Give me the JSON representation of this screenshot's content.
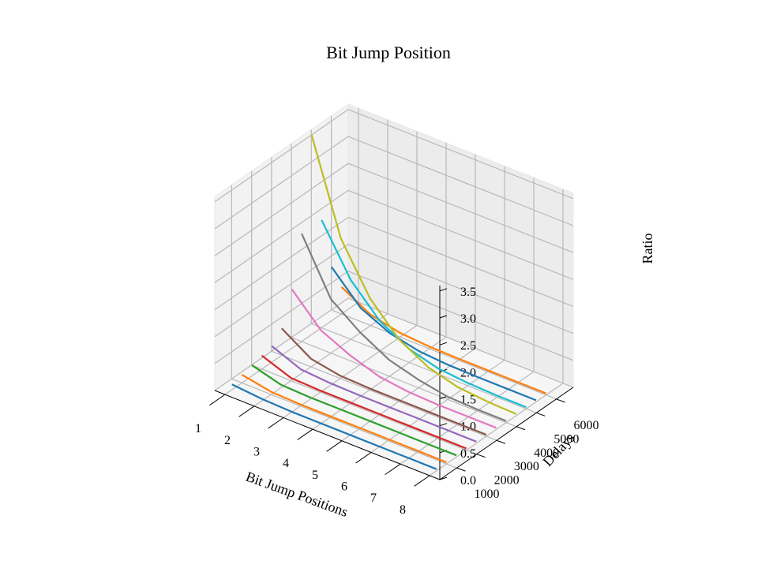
{
  "chart_data": {
    "type": "line3d",
    "title": "Bit Jump Position",
    "xlabel": "Bit Jump Positions",
    "ylabel": "Delays",
    "zlabel": "Ratio",
    "x": [
      1,
      2,
      3,
      4,
      5,
      6,
      7,
      8
    ],
    "x_ticks": [
      "1",
      "2",
      "3",
      "4",
      "5",
      "6",
      "7",
      "8"
    ],
    "y_ticks": [
      "1000",
      "2000",
      "3000",
      "4000",
      "5000",
      "6000"
    ],
    "z_ticks": [
      "0.0",
      "0.5",
      "1.0",
      "1.5",
      "2.0",
      "2.5",
      "3.0",
      "3.5"
    ],
    "xlim": [
      0.65,
      8.35
    ],
    "ylim": [
      150,
      6850
    ],
    "zlim": [
      0,
      3.6
    ],
    "grid": true,
    "series": [
      {
        "delay": 500,
        "color": "#1f77b4",
        "values": [
          0.1,
          0.05,
          0.03,
          0.03,
          0.03,
          0.03,
          0.03,
          0.03
        ]
      },
      {
        "delay": 1000,
        "color": "#ff7f0e",
        "values": [
          0.15,
          0.05,
          0.03,
          0.03,
          0.03,
          0.03,
          0.03,
          0.03
        ]
      },
      {
        "delay": 1500,
        "color": "#2ca02c",
        "values": [
          0.2,
          0.05,
          0.03,
          0.03,
          0.03,
          0.03,
          0.03,
          0.03
        ]
      },
      {
        "delay": 2000,
        "color": "#d62728",
        "values": [
          0.25,
          0.05,
          0.03,
          0.03,
          0.03,
          0.03,
          0.03,
          0.03
        ]
      },
      {
        "delay": 2500,
        "color": "#9467bd",
        "values": [
          0.3,
          0.08,
          0.04,
          0.03,
          0.03,
          0.03,
          0.03,
          0.03
        ]
      },
      {
        "delay": 3000,
        "color": "#8c564b",
        "values": [
          0.5,
          0.15,
          0.05,
          0.03,
          0.03,
          0.03,
          0.03,
          0.03
        ]
      },
      {
        "delay": 3500,
        "color": "#e377c2",
        "values": [
          1.1,
          0.55,
          0.3,
          0.12,
          0.05,
          0.03,
          0.03,
          0.03
        ]
      },
      {
        "delay": 4000,
        "color": "#7f7f7f",
        "values": [
          2.0,
          1.0,
          0.6,
          0.3,
          0.15,
          0.05,
          0.03,
          0.03
        ]
      },
      {
        "delay": 4500,
        "color": "#bcbd22",
        "values": [
          3.7,
          2.0,
          1.1,
          0.55,
          0.25,
          0.1,
          0.05,
          0.03
        ]
      },
      {
        "delay": 5000,
        "color": "#17becf",
        "values": [
          2.0,
          1.1,
          0.55,
          0.25,
          0.1,
          0.05,
          0.03,
          0.03
        ]
      },
      {
        "delay": 5500,
        "color": "#1f77b4",
        "values": [
          1.0,
          0.45,
          0.2,
          0.08,
          0.04,
          0.03,
          0.03,
          0.03
        ]
      },
      {
        "delay": 6000,
        "color": "#ff7f0e",
        "values": [
          0.5,
          0.2,
          0.08,
          0.04,
          0.03,
          0.03,
          0.03,
          0.03
        ]
      }
    ]
  }
}
